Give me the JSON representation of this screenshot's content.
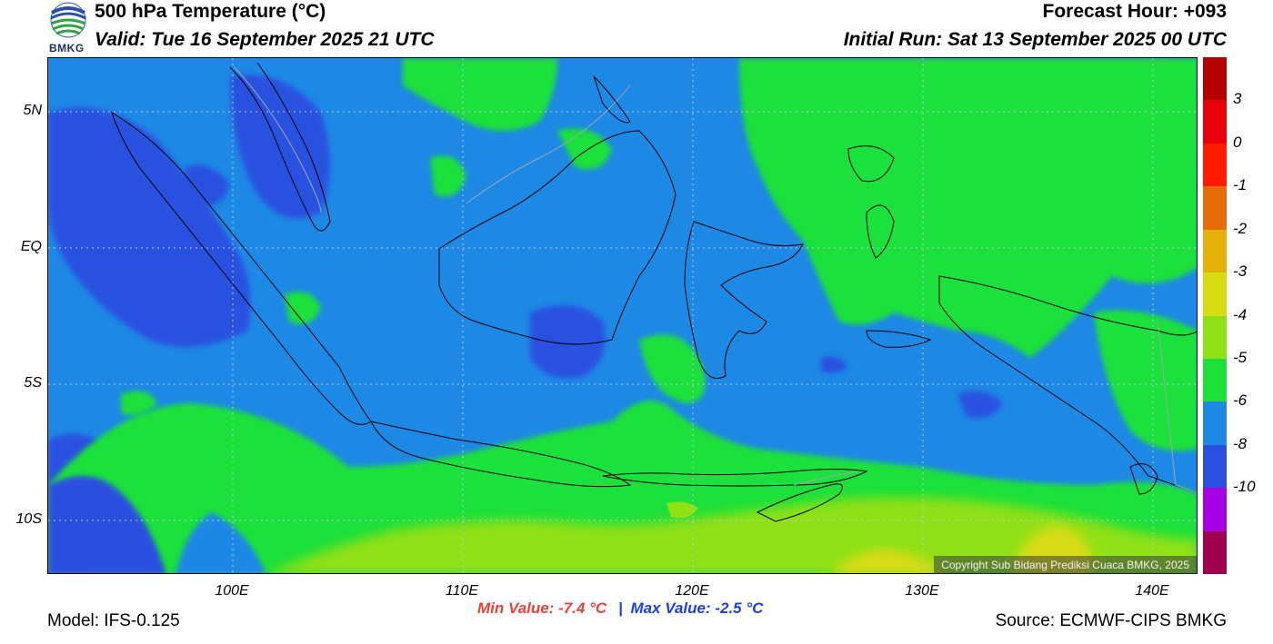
{
  "header": {
    "title": "500 hPa Temperature (°C)",
    "valid": "Valid: Tue 16 September 2025 21 UTC",
    "forecast_hour": "Forecast Hour: +093",
    "initial_run": "Initial Run: Sat 13 September 2025 00 UTC"
  },
  "logo": {
    "text": "BMKG",
    "icon": "bmkg-logo-icon"
  },
  "map": {
    "lat_labels": [
      "5N",
      "EQ",
      "5S",
      "10S"
    ],
    "lon_labels": [
      "100E",
      "110E",
      "120E",
      "130E",
      "140E"
    ],
    "copyright": "Copyright Sub Bidang Prediksi Cuaca BMKG, 2025"
  },
  "colorbar": {
    "labels": [
      "3",
      "0",
      "-1",
      "-2",
      "-3",
      "-4",
      "-5",
      "-6",
      "-8",
      "-10"
    ],
    "colors": [
      "#b40000",
      "#e8000b",
      "#ff1a00",
      "#e66c0a",
      "#e6b00a",
      "#d8dc12",
      "#8fe014",
      "#1ee03a",
      "#1e88e5",
      "#2b50e0",
      "#a800e6",
      "#a0004e"
    ]
  },
  "stats": {
    "min_label": "Min Value: -7.4 °C",
    "separator": "|",
    "max_label": "Max Value: -2.5 °C",
    "min_color": "#e8413a",
    "max_color": "#1f3fd6"
  },
  "footer": {
    "model": "Model: IFS-0.125",
    "source": "Source: ECMWF-CIPS BMKG"
  }
}
